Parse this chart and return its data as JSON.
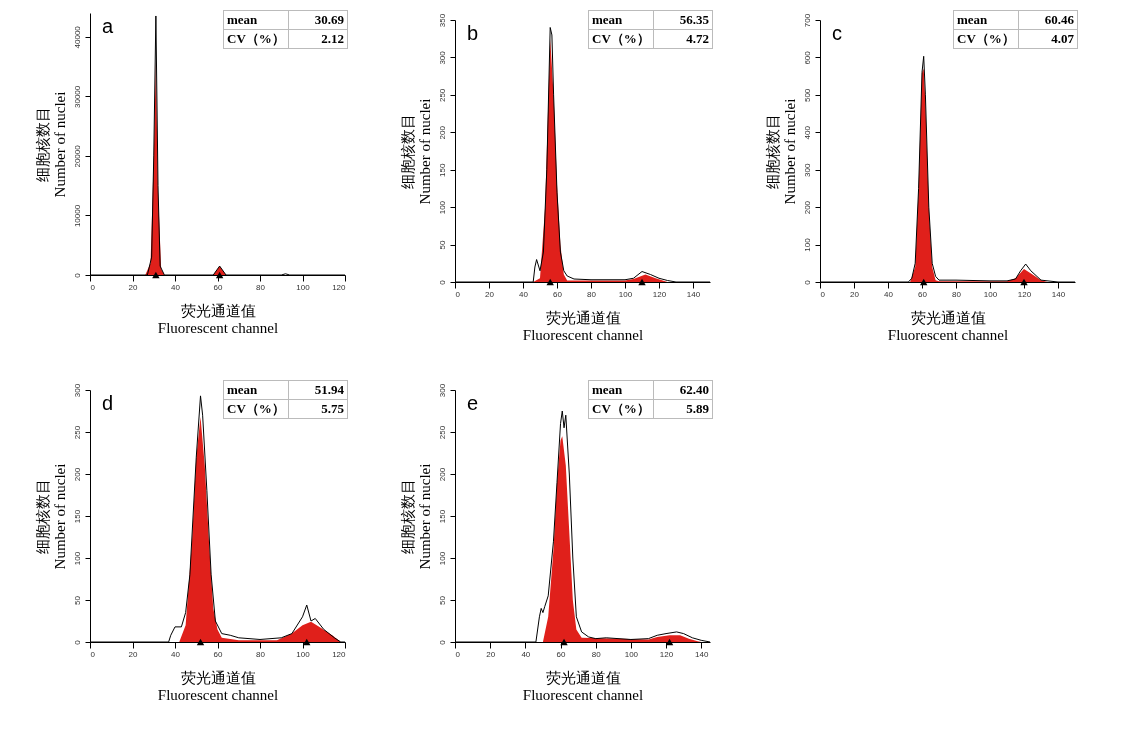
{
  "chart_data": [
    {
      "type": "area",
      "title": "a",
      "xlabel": "荧光通道值\nFluorescent channel",
      "ylabel": "细胞核数目\nNumber of nuclei",
      "xlim": [
        0,
        120
      ],
      "xticks": [
        0,
        20,
        40,
        60,
        80,
        100,
        120
      ],
      "ylim": [
        0,
        44000
      ],
      "yticks": [
        0,
        10000,
        20000,
        30000,
        40000
      ],
      "grid": false,
      "annotations": [
        "mean",
        "30.69",
        "CV（%）",
        "2.12"
      ],
      "series": [
        {
          "color": "#e0201b",
          "x": [
            26,
            28.5,
            30,
            31,
            32,
            33.5,
            35,
            58,
            60,
            61,
            62,
            64
          ],
          "values": [
            0,
            2000,
            20000,
            36000,
            14000,
            1000,
            0,
            0,
            1000,
            1500,
            1000,
            0
          ]
        },
        {
          "type": "line",
          "color": "#000000",
          "x": [
            0,
            27,
            29,
            30,
            31,
            32,
            33,
            35,
            58,
            60,
            61,
            62,
            64,
            90,
            92,
            94,
            120
          ],
          "values": [
            0,
            0,
            3000,
            20000,
            43500,
            15000,
            1500,
            0,
            0,
            1000,
            1500,
            1000,
            0,
            0,
            200,
            0,
            0
          ]
        },
        {
          "type": "scatter",
          "color": "#000000",
          "marker": "triangle",
          "x": [
            31,
            61
          ],
          "values": [
            0,
            0
          ]
        }
      ]
    },
    {
      "type": "area",
      "title": "b",
      "xlabel": "荧光通道值\nFluorescent channel",
      "ylabel": "细胞核数目\nNumber of nuclei",
      "xlim": [
        0,
        150
      ],
      "xticks": [
        0,
        20,
        40,
        60,
        80,
        100,
        120,
        140
      ],
      "ylim": [
        0,
        350
      ],
      "yticks": [
        0,
        50,
        100,
        150,
        200,
        250,
        300,
        350
      ],
      "grid": false,
      "annotations": [
        "mean",
        "56.35",
        "CV（%）",
        "4.72"
      ],
      "series": [
        {
          "color": "#e0201b",
          "x": [
            46,
            50,
            53,
            56,
            58,
            60,
            62,
            64,
            66,
            100,
            105,
            112,
            118,
            125
          ],
          "values": [
            0,
            5,
            100,
            325,
            250,
            130,
            50,
            10,
            2,
            2,
            4,
            10,
            5,
            0
          ]
        },
        {
          "type": "line",
          "color": "#000000",
          "x": [
            0,
            46,
            47,
            48,
            50,
            52,
            54,
            56,
            57,
            58,
            60,
            62,
            64,
            66,
            70,
            80,
            100,
            105,
            110,
            115,
            120,
            125,
            130,
            150
          ],
          "values": [
            0,
            0,
            20,
            30,
            15,
            40,
            150,
            340,
            330,
            250,
            120,
            40,
            15,
            8,
            4,
            3,
            3,
            5,
            14,
            10,
            5,
            2,
            0,
            0
          ]
        },
        {
          "type": "scatter",
          "color": "#000000",
          "marker": "triangle",
          "x": [
            56,
            110
          ],
          "values": [
            0,
            0
          ]
        }
      ]
    },
    {
      "type": "area",
      "title": "c",
      "xlabel": "荧光通道值\nFluorescent channel",
      "ylabel": "细胞核数目\nNumber of nuclei",
      "xlim": [
        0,
        150
      ],
      "xticks": [
        0,
        20,
        40,
        60,
        80,
        100,
        120,
        140
      ],
      "ylim": [
        0,
        700
      ],
      "yticks": [
        0,
        100,
        200,
        300,
        400,
        500,
        600,
        700
      ],
      "grid": false,
      "annotations": [
        "mean",
        "60.46",
        "CV（%）",
        "4.07"
      ],
      "series": [
        {
          "color": "#e0201b",
          "x": [
            53,
            56,
            58,
            60,
            61,
            62,
            64,
            66,
            68,
            70,
            110,
            115,
            120,
            125,
            130,
            134
          ],
          "values": [
            0,
            40,
            250,
            560,
            570,
            480,
            200,
            40,
            5,
            2,
            2,
            10,
            35,
            20,
            5,
            0
          ]
        },
        {
          "type": "line",
          "color": "#000000",
          "x": [
            0,
            52,
            54,
            56,
            58,
            60,
            61,
            62,
            64,
            66,
            68,
            70,
            80,
            100,
            110,
            115,
            118,
            121,
            124,
            130,
            140,
            150
          ],
          "values": [
            0,
            0,
            10,
            50,
            250,
            560,
            603,
            500,
            200,
            50,
            15,
            5,
            5,
            3,
            3,
            8,
            30,
            48,
            30,
            5,
            0,
            0
          ]
        },
        {
          "type": "scatter",
          "color": "#000000",
          "marker": "triangle",
          "x": [
            61,
            120
          ],
          "values": [
            0,
            0
          ]
        }
      ]
    },
    {
      "type": "area",
      "title": "d",
      "xlabel": "荧光通道值\nFluorescent channel",
      "ylabel": "细胞核数目\nNumber of nuclei",
      "xlim": [
        0,
        120
      ],
      "xticks": [
        0,
        20,
        40,
        60,
        80,
        100,
        120
      ],
      "ylim": [
        0,
        300
      ],
      "yticks": [
        0,
        50,
        100,
        150,
        200,
        250,
        300
      ],
      "grid": false,
      "annotations": [
        "mean",
        "51.94",
        "CV（%）",
        "5.75"
      ],
      "series": [
        {
          "color": "#e0201b",
          "x": [
            42,
            45,
            48,
            50,
            52,
            54,
            56,
            58,
            60,
            62,
            70,
            88,
            95,
            100,
            104,
            108,
            114,
            118
          ],
          "values": [
            0,
            20,
            120,
            220,
            268,
            210,
            120,
            40,
            15,
            5,
            2,
            2,
            10,
            20,
            24,
            18,
            8,
            0
          ]
        },
        {
          "type": "line",
          "color": "#000000",
          "x": [
            0,
            37,
            38,
            40,
            43,
            45,
            47,
            50,
            52,
            53,
            55,
            57,
            59,
            62,
            66,
            70,
            80,
            90,
            95,
            100,
            102,
            104,
            106,
            110,
            115,
            118,
            120
          ],
          "values": [
            0,
            0,
            8,
            18,
            18,
            35,
            80,
            220,
            293,
            270,
            180,
            80,
            25,
            10,
            8,
            5,
            3,
            5,
            10,
            30,
            44,
            25,
            28,
            15,
            5,
            0,
            0
          ]
        },
        {
          "type": "scatter",
          "color": "#000000",
          "marker": "triangle",
          "x": [
            52,
            102
          ],
          "values": [
            0,
            0
          ]
        }
      ]
    },
    {
      "type": "area",
      "title": "e",
      "xlabel": "荧光通道值\nFluorescent channel",
      "ylabel": "细胞核数目\nNumber of nuclei",
      "xlim": [
        0,
        145
      ],
      "xticks": [
        0,
        20,
        40,
        60,
        80,
        100,
        120,
        140
      ],
      "ylim": [
        0,
        300
      ],
      "yticks": [
        0,
        50,
        100,
        150,
        200,
        250,
        300
      ],
      "grid": false,
      "annotations": [
        "mean",
        "62.40",
        "CV（%）",
        "5.89"
      ],
      "series": [
        {
          "color": "#e0201b",
          "x": [
            50,
            53,
            56,
            58,
            60,
            61,
            63,
            65,
            67,
            69,
            72,
            110,
            115,
            122,
            128,
            133,
            138,
            140
          ],
          "values": [
            0,
            30,
            110,
            190,
            240,
            245,
            210,
            130,
            50,
            15,
            5,
            3,
            6,
            8,
            8,
            4,
            1,
            0
          ]
        },
        {
          "type": "line",
          "color": "#000000",
          "x": [
            0,
            46,
            48,
            49,
            50,
            51,
            53,
            56,
            58,
            60,
            61,
            62,
            63,
            65,
            67,
            69,
            72,
            76,
            80,
            86,
            100,
            110,
            115,
            120,
            126,
            130,
            135,
            140,
            145
          ],
          "values": [
            0,
            0,
            30,
            40,
            35,
            42,
            55,
            120,
            190,
            260,
            275,
            255,
            270,
            200,
            100,
            30,
            12,
            6,
            4,
            5,
            3,
            4,
            8,
            10,
            12,
            10,
            5,
            2,
            0
          ]
        },
        {
          "type": "scatter",
          "color": "#000000",
          "marker": "triangle",
          "x": [
            62,
            122
          ],
          "values": [
            0,
            0
          ]
        }
      ]
    }
  ]
}
